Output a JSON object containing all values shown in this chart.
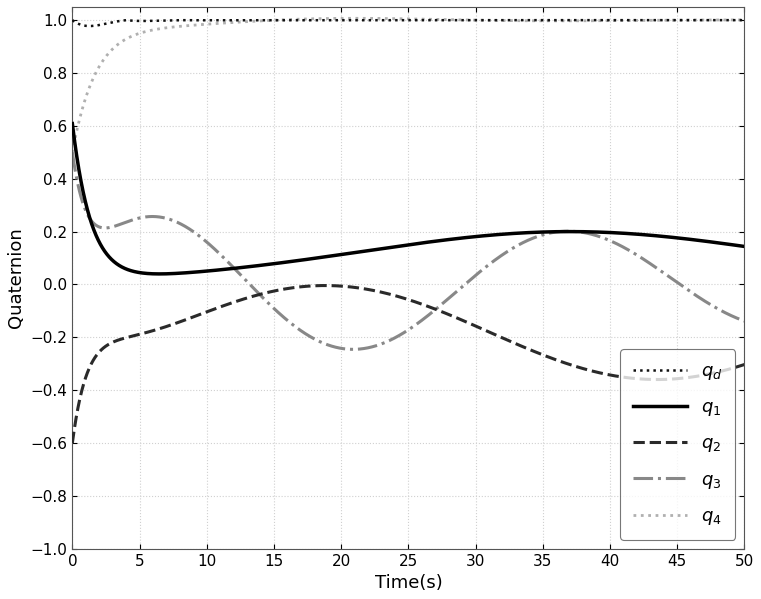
{
  "xlabel": "Time(s)",
  "ylabel": "Quaternion",
  "xlim": [
    0,
    50
  ],
  "ylim": [
    -1,
    1.05
  ],
  "yticks": [
    -1,
    -0.8,
    -0.6,
    -0.4,
    -0.2,
    0,
    0.2,
    0.4,
    0.6,
    0.8,
    1
  ],
  "xticks": [
    0,
    5,
    10,
    15,
    20,
    25,
    30,
    35,
    40,
    45,
    50
  ],
  "legend_labels": [
    "$q_d$",
    "$q_1$",
    "$q_2$",
    "$q_3$",
    "$q_4$"
  ],
  "colors": [
    "#111111",
    "#000000",
    "#2a2a2a",
    "#888888",
    "#b0b0b0"
  ],
  "t_max": 50,
  "dt": 0.02,
  "figsize": [
    7.61,
    5.99
  ],
  "dpi": 100
}
